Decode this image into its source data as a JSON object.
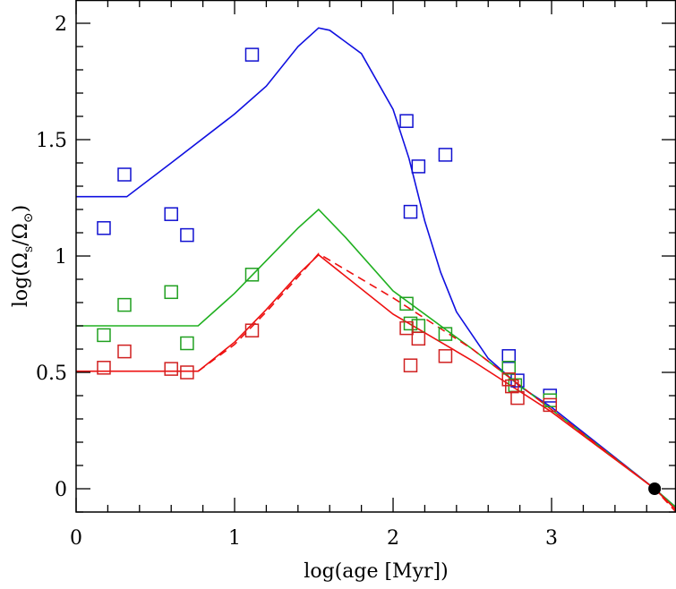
{
  "chart_data": {
    "type": "scatter",
    "title": "",
    "xlabel": "log(age [Myr])",
    "ylabel": {
      "main": "log(Ω",
      "sub1": "s",
      "mid": "/Ω",
      "sub2": "⊙",
      "end": ")"
    },
    "xlim": [
      0,
      3.785
    ],
    "ylim": [
      -0.1,
      2.1
    ],
    "xticks": [
      0,
      1,
      2,
      3
    ],
    "xtick_labels": [
      "0",
      "1",
      "2",
      "3"
    ],
    "yticks": [
      0,
      0.5,
      1,
      1.5,
      2
    ],
    "ytick_labels": [
      "0",
      "0.5",
      "1",
      "1.5",
      "2"
    ],
    "grid": false,
    "series": [
      {
        "kind": "squares",
        "color": "#1010d0",
        "points": [
          [
            0.175,
            1.12
          ],
          [
            0.305,
            1.35
          ],
          [
            0.6,
            1.18
          ],
          [
            0.7,
            1.09
          ],
          [
            1.11,
            1.865
          ],
          [
            2.085,
            1.58
          ],
          [
            2.11,
            1.19
          ],
          [
            2.16,
            1.385
          ],
          [
            2.33,
            1.435
          ],
          [
            2.73,
            0.57
          ],
          [
            2.785,
            0.465
          ],
          [
            2.99,
            0.4
          ]
        ]
      },
      {
        "kind": "squares",
        "color": "#20a020",
        "points": [
          [
            0.175,
            0.66
          ],
          [
            0.305,
            0.79
          ],
          [
            0.6,
            0.845
          ],
          [
            0.7,
            0.625
          ],
          [
            1.11,
            0.92
          ],
          [
            2.085,
            0.795
          ],
          [
            2.11,
            0.71
          ],
          [
            2.16,
            0.7
          ],
          [
            2.33,
            0.665
          ],
          [
            2.73,
            0.52
          ],
          [
            2.77,
            0.445
          ],
          [
            2.99,
            0.38
          ]
        ]
      },
      {
        "kind": "squares",
        "color": "#d02020",
        "points": [
          [
            0.175,
            0.52
          ],
          [
            0.305,
            0.59
          ],
          [
            0.6,
            0.515
          ],
          [
            0.7,
            0.5
          ],
          [
            1.11,
            0.68
          ],
          [
            2.085,
            0.69
          ],
          [
            2.11,
            0.53
          ],
          [
            2.16,
            0.645
          ],
          [
            2.33,
            0.57
          ],
          [
            2.73,
            0.47
          ],
          [
            2.75,
            0.44
          ],
          [
            2.785,
            0.39
          ],
          [
            2.99,
            0.36
          ]
        ]
      },
      {
        "kind": "line",
        "color": "#1010e0",
        "dash": false,
        "points": [
          [
            0,
            1.255
          ],
          [
            0.32,
            1.255
          ],
          [
            0.6,
            1.4
          ],
          [
            1.0,
            1.61
          ],
          [
            1.2,
            1.73
          ],
          [
            1.4,
            1.9
          ],
          [
            1.53,
            1.98
          ],
          [
            1.6,
            1.97
          ],
          [
            1.8,
            1.87
          ],
          [
            2.0,
            1.63
          ],
          [
            2.1,
            1.42
          ],
          [
            2.2,
            1.15
          ],
          [
            2.3,
            0.93
          ],
          [
            2.4,
            0.76
          ],
          [
            2.6,
            0.56
          ],
          [
            2.8,
            0.44
          ],
          [
            3.0,
            0.35
          ],
          [
            3.65,
            0
          ],
          [
            3.785,
            -0.08
          ]
        ]
      },
      {
        "kind": "line",
        "color": "#20b020",
        "dash": false,
        "points": [
          [
            0,
            0.7
          ],
          [
            0.77,
            0.7
          ],
          [
            1.0,
            0.84
          ],
          [
            1.2,
            0.98
          ],
          [
            1.4,
            1.12
          ],
          [
            1.53,
            1.2
          ],
          [
            1.7,
            1.08
          ],
          [
            2.0,
            0.85
          ],
          [
            2.5,
            0.6
          ],
          [
            3.0,
            0.34
          ],
          [
            3.65,
            0
          ],
          [
            3.785,
            -0.08
          ]
        ]
      },
      {
        "kind": "line",
        "color": "#ee1010",
        "dash": false,
        "points": [
          [
            0,
            0.505
          ],
          [
            0.77,
            0.505
          ],
          [
            1.0,
            0.63
          ],
          [
            1.2,
            0.77
          ],
          [
            1.4,
            0.92
          ],
          [
            1.53,
            1.005
          ],
          [
            2.0,
            0.75
          ],
          [
            2.5,
            0.55
          ],
          [
            3.0,
            0.33
          ],
          [
            3.65,
            0
          ],
          [
            3.785,
            -0.09
          ]
        ]
      },
      {
        "kind": "line",
        "color": "#ee1010",
        "dash": true,
        "points": [
          [
            0.77,
            0.505
          ],
          [
            1.0,
            0.62
          ],
          [
            1.2,
            0.76
          ],
          [
            1.4,
            0.91
          ],
          [
            1.53,
            1.01
          ],
          [
            2.0,
            0.82
          ],
          [
            2.5,
            0.6
          ],
          [
            3.0,
            0.34
          ],
          [
            3.65,
            0
          ],
          [
            3.785,
            -0.1
          ]
        ]
      },
      {
        "kind": "sun",
        "color": "#000000",
        "points": [
          [
            3.65,
            0
          ]
        ]
      }
    ]
  }
}
